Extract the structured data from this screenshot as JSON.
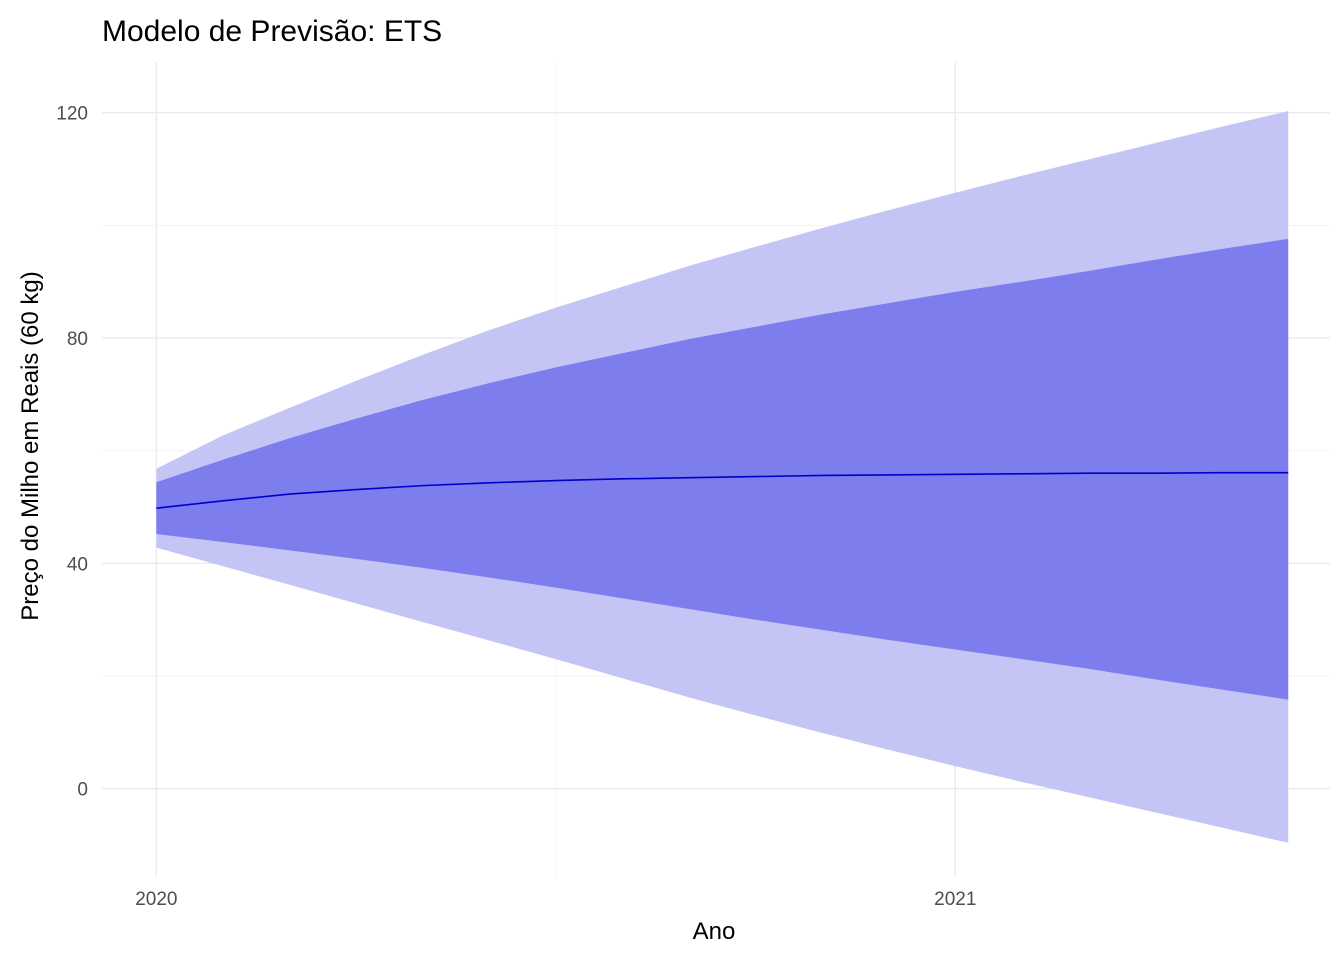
{
  "chart_data": {
    "type": "area",
    "title": "Modelo de Previsão: ETS",
    "xlabel": "Ano",
    "ylabel": "Preço do Milho em Reais (60 kg)",
    "x_ticks": [
      {
        "value": 2020,
        "label": "2020"
      },
      {
        "value": 2021,
        "label": "2021"
      }
    ],
    "y_ticks": [
      {
        "value": 0,
        "label": "0"
      },
      {
        "value": 40,
        "label": "40"
      },
      {
        "value": 80,
        "label": "80"
      },
      {
        "value": 120,
        "label": "120"
      }
    ],
    "xlim": [
      2019.932,
      2021.469
    ],
    "ylim": [
      -15.5,
      129
    ],
    "grid": true,
    "legend": "none",
    "x": [
      2020.0,
      2020.0833,
      2020.1667,
      2020.25,
      2020.3333,
      2020.4167,
      2020.5,
      2020.5833,
      2020.6667,
      2020.75,
      2020.8333,
      2020.9167,
      2021.0,
      2021.0833,
      2021.1667,
      2021.25,
      2021.3333,
      2021.4167
    ],
    "series": [
      {
        "role": "point_forecast",
        "values": [
          49.8,
          51.1,
          52.3,
          53.1,
          53.8,
          54.3,
          54.7,
          55.0,
          55.2,
          55.4,
          55.6,
          55.7,
          55.8,
          55.9,
          56.0,
          56.0,
          56.1,
          56.1
        ]
      },
      {
        "role": "interval_inner",
        "lower": [
          45.2,
          43.8,
          42.3,
          40.8,
          39.2,
          37.5,
          35.7,
          33.8,
          31.9,
          30.0,
          28.2,
          26.4,
          24.7,
          23.0,
          21.3,
          19.4,
          17.6,
          15.8
        ],
        "upper": [
          54.4,
          58.4,
          62.2,
          65.7,
          69.0,
          72.0,
          74.8,
          77.3,
          79.8,
          82.0,
          84.2,
          86.2,
          88.2,
          90.0,
          91.9,
          93.9,
          95.8,
          97.6
        ]
      },
      {
        "role": "interval_outer",
        "lower": [
          42.8,
          39.5,
          36.2,
          32.9,
          29.6,
          26.3,
          23.0,
          19.6,
          16.2,
          13.0,
          9.9,
          6.9,
          4.0,
          1.2,
          -1.5,
          -4.2,
          -6.9,
          -9.6
        ],
        "upper": [
          56.8,
          62.7,
          67.6,
          72.4,
          77.0,
          81.4,
          85.4,
          89.1,
          92.8,
          96.2,
          99.5,
          102.7,
          105.8,
          108.8,
          111.7,
          114.6,
          117.5,
          120.3
        ]
      }
    ],
    "colors": {
      "point_forecast": "#0000cc",
      "interval_inner": "#7d7dee",
      "interval_outer": "#c4c4f5",
      "grid": "#ebebeb",
      "tick_text": "#4d4d4d",
      "text": "#000000"
    }
  }
}
